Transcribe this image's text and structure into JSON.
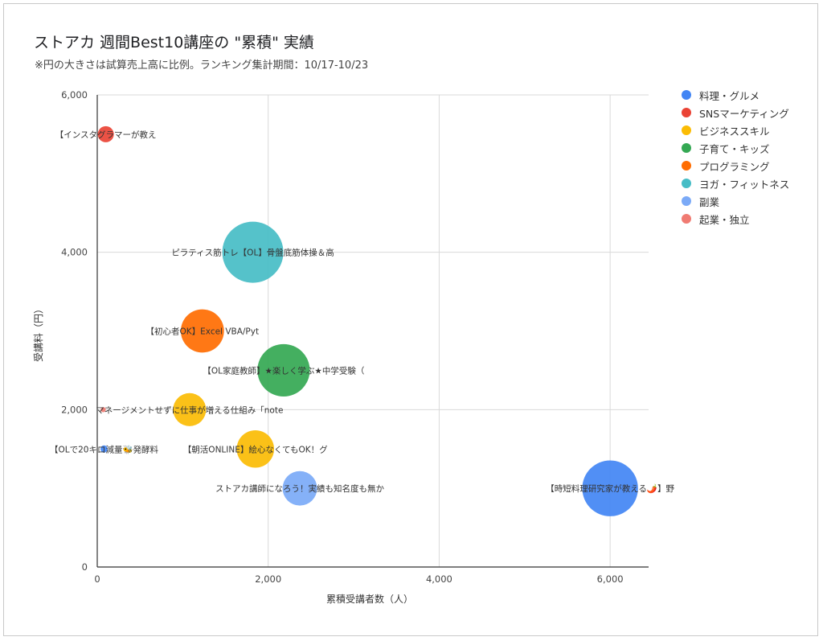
{
  "chart_data": {
    "type": "bubble",
    "title": "ストアカ 週間Best10講座の \"累積\" 実績",
    "subtitle": "※円の大きさは試算売上高に比例。ランキング集計期間：10/17-10/23",
    "xlabel": "累積受講者数（人）",
    "ylabel": "受講料（円）",
    "xlim": [
      0,
      6450
    ],
    "ylim": [
      0,
      6000
    ],
    "x_ticks": [
      "0",
      "2,000",
      "4,000",
      "6,000"
    ],
    "x_tick_values": [
      0,
      2000,
      4000,
      6000
    ],
    "y_ticks": [
      "0",
      "2,000",
      "4,000",
      "6,000"
    ],
    "y_tick_values": [
      0,
      2000,
      4000,
      6000
    ],
    "grid": true,
    "legend_position": "right",
    "categories": [
      {
        "name": "料理・グルメ",
        "color": "#4285F4"
      },
      {
        "name": "SNSマーケティング",
        "color": "#EA4335"
      },
      {
        "name": "ビジネススキル",
        "color": "#FBBC04"
      },
      {
        "name": "子育て・キッズ",
        "color": "#34A853"
      },
      {
        "name": "プログラミング",
        "color": "#FF6D01"
      },
      {
        "name": "ヨガ・フィットネス",
        "color": "#46BDC6"
      },
      {
        "name": "副業",
        "color": "#7BAAF7"
      },
      {
        "name": "起業・独立",
        "color": "#F07B72"
      }
    ],
    "points": [
      {
        "label": "【インスタグラマーが教え",
        "x": 100,
        "y": 5500,
        "size": 0.5,
        "category": "SNSマーケティング"
      },
      {
        "label": "ピラティス筋トレ【OL】骨盤底筋体操＆高",
        "x": 1820,
        "y": 4000,
        "size": 7.2,
        "category": "ヨガ・フィットネス"
      },
      {
        "label": "【初心者OK】Excel VBA/Pyt",
        "x": 1230,
        "y": 3000,
        "size": 3.6,
        "category": "プログラミング"
      },
      {
        "label": "【OL家庭教師】★楽しく学ぶ★中学受験（",
        "x": 2180,
        "y": 2500,
        "size": 5.3,
        "category": "子育て・キッズ"
      },
      {
        "label": "マネージメントせずに仕事が増える仕組み「note",
        "x": 1080,
        "y": 2000,
        "size": 2.1,
        "category": "ビジネススキル"
      },
      {
        "label": "【朝活ONLINE】絵心なくてもOK！グ",
        "x": 1850,
        "y": 1500,
        "size": 2.7,
        "category": "ビジネススキル"
      },
      {
        "label": "ストアカ講師になろう！実績も知名度も無か",
        "x": 2370,
        "y": 1000,
        "size": 2.3,
        "category": "副業"
      },
      {
        "label": "【時短料理研究家が教える🌶️】野",
        "x": 6000,
        "y": 1000,
        "size": 6.0,
        "category": "料理・グルメ"
      },
      {
        "label": "【OLで20キロ減量🐝発酵料",
        "x": 80,
        "y": 1500,
        "size": 0.1,
        "category": "料理・グルメ"
      },
      {
        "label": "",
        "x": 70,
        "y": 2000,
        "size": 0.05,
        "category": "起業・独立"
      }
    ]
  }
}
